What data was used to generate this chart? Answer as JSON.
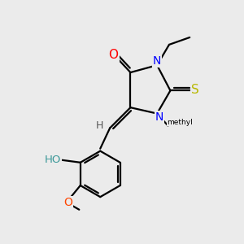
{
  "background_color": "#ebebeb",
  "atom_colors": {
    "O": "#ff0000",
    "N": "#0000ff",
    "S": "#b8b800",
    "H": "#000000",
    "HO_color": "#3d9999",
    "O_meo": "#ff4500"
  },
  "figsize": [
    3.0,
    3.0
  ],
  "dpi": 100,
  "lw": 1.6
}
